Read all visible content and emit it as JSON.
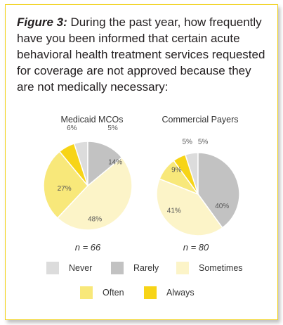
{
  "title": {
    "figure": "Figure 3:",
    "text": " During the past year, how frequently have you been informed that certain acute behavioral health treatment services requested for coverage are not approved because they are not medically necessary:"
  },
  "colors": {
    "Never": "#dcdcdc",
    "Rarely": "#c2c2c2",
    "Sometimes": "#fcf4c8",
    "Often": "#f8e87a",
    "Always": "#f7d417"
  },
  "chart_data": [
    {
      "type": "pie",
      "title": "Medicaid MCOs",
      "n_label": "n = 66",
      "categories": [
        "Never",
        "Rarely",
        "Sometimes",
        "Often",
        "Always"
      ],
      "values": [
        5,
        14,
        48,
        27,
        6
      ],
      "labels": [
        "5%",
        "14%",
        "48%",
        "27%",
        "6%"
      ]
    },
    {
      "type": "pie",
      "title": "Commercial Payers",
      "n_label": "n = 80",
      "categories": [
        "Never",
        "Rarely",
        "Sometimes",
        "Often",
        "Always"
      ],
      "values": [
        5,
        40,
        41,
        9,
        5
      ],
      "labels": [
        "5%",
        "40%",
        "41%",
        "9%",
        "5%"
      ]
    }
  ],
  "legend": [
    "Never",
    "Rarely",
    "Sometimes",
    "Often",
    "Always"
  ]
}
